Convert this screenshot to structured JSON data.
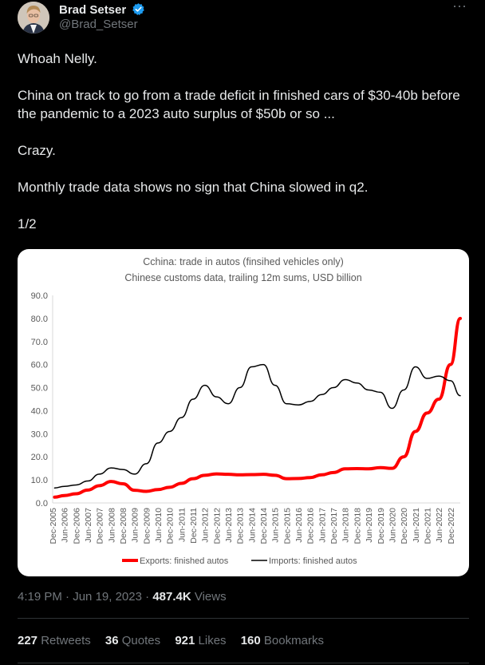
{
  "author": {
    "name": "Brad Setser",
    "handle": "@Brad_Setser",
    "verified_color": "#1d9bf0"
  },
  "tweet": {
    "paragraphs": [
      "Whoah Nelly.",
      "China on track to go from a trade deficit in finished cars of $30-40b before the pandemic to a 2023 auto surplus of $50b or so ...",
      "Crazy.",
      "Monthly trade data shows no sign that China slowed in q2.",
      "1/2"
    ]
  },
  "chart_data": {
    "type": "line",
    "title": "Cchina: trade in autos (finsihed vehicles only)",
    "subtitle": "Chinese customs data, trailing 12m sums, USD billion",
    "ylim": [
      0,
      90
    ],
    "yticks": [
      "0.0",
      "10.0",
      "20.0",
      "30.0",
      "40.0",
      "50.0",
      "60.0",
      "70.0",
      "80.0",
      "90.0"
    ],
    "xticks": [
      "Dec-2005",
      "Jun-2006",
      "Dec-2006",
      "Jun-2007",
      "Dec-2007",
      "Jun-2008",
      "Dec-2008",
      "Jun-2009",
      "Dec-2009",
      "Jun-2010",
      "Dec-2010",
      "Jun-2011",
      "Dec-2011",
      "Jun-2012",
      "Dec-2012",
      "Jun-2013",
      "Dec-2013",
      "Jun-2014",
      "Dec-2014",
      "Jun-2015",
      "Dec-2015",
      "Jun-2016",
      "Dec-2016",
      "Jun-2017",
      "Dec-2017",
      "Jun-2018",
      "Dec-2018",
      "Jun-2019",
      "Dec-2019",
      "Jun-2020",
      "Dec-2020",
      "Jun-2021",
      "Dec-2021",
      "Jun-2022",
      "Dec-2022"
    ],
    "series": [
      {
        "name": "Exports: finished autos",
        "color": "#ff0000",
        "x": [
          "2006-01",
          "2006-06",
          "2006-12",
          "2007-06",
          "2007-12",
          "2008-06",
          "2008-12",
          "2009-06",
          "2009-12",
          "2010-06",
          "2010-12",
          "2011-06",
          "2011-12",
          "2012-06",
          "2012-12",
          "2013-06",
          "2013-12",
          "2014-06",
          "2014-12",
          "2015-06",
          "2015-12",
          "2016-06",
          "2016-12",
          "2017-06",
          "2017-12",
          "2018-06",
          "2018-12",
          "2019-06",
          "2019-12",
          "2020-06",
          "2020-12",
          "2021-06",
          "2021-12",
          "2022-06",
          "2022-12",
          "2023-05"
        ],
        "y": [
          2.5,
          3.2,
          4.0,
          5.6,
          7.5,
          9.3,
          8.3,
          5.5,
          5.0,
          5.8,
          6.8,
          8.5,
          10.5,
          12.0,
          12.6,
          12.4,
          12.2,
          12.3,
          12.4,
          12.0,
          10.5,
          10.6,
          11.0,
          12.2,
          13.2,
          14.8,
          14.9,
          14.8,
          15.3,
          15.0,
          20.0,
          31.0,
          39.0,
          45.0,
          60.0,
          80.0
        ]
      },
      {
        "name": "Imports: finished autos",
        "color": "#000000",
        "x": [
          "2006-01",
          "2006-06",
          "2006-12",
          "2007-06",
          "2007-12",
          "2008-06",
          "2008-12",
          "2009-06",
          "2009-12",
          "2010-06",
          "2010-12",
          "2011-06",
          "2011-12",
          "2012-06",
          "2012-12",
          "2013-06",
          "2013-12",
          "2014-06",
          "2014-12",
          "2015-06",
          "2015-12",
          "2016-06",
          "2016-12",
          "2017-06",
          "2017-12",
          "2018-06",
          "2018-12",
          "2019-06",
          "2019-12",
          "2020-06",
          "2020-12",
          "2021-06",
          "2021-12",
          "2022-06",
          "2022-12",
          "2023-05"
        ],
        "y": [
          6.5,
          7.2,
          7.8,
          9.5,
          12.5,
          15.2,
          14.5,
          12.5,
          17.0,
          26.0,
          31.0,
          37.0,
          45.0,
          51.0,
          46.0,
          43.0,
          50.0,
          59.0,
          60.0,
          51.0,
          43.0,
          42.5,
          44.0,
          47.0,
          50.0,
          53.5,
          52.0,
          49.0,
          48.0,
          41.0,
          49.0,
          59.0,
          54.0,
          55.0,
          53.0,
          46.5
        ]
      }
    ],
    "legend": "bottom",
    "grid": false
  },
  "meta": {
    "time": "4:19 PM",
    "date": "Jun 19, 2023",
    "views_count": "487.4K",
    "views_label": "Views"
  },
  "stats": {
    "retweets_count": "227",
    "retweets_label": "Retweets",
    "quotes_count": "36",
    "quotes_label": "Quotes",
    "likes_count": "921",
    "likes_label": "Likes",
    "bookmarks_count": "160",
    "bookmarks_label": "Bookmarks"
  }
}
